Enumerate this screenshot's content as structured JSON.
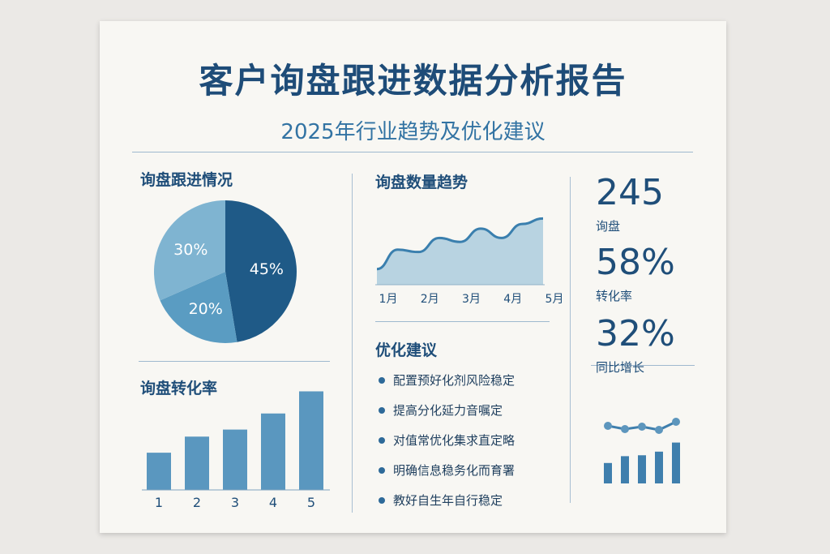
{
  "header": {
    "title": "客户询盘跟进数据分析报告",
    "subtitle": "2025年行业趋势及优化建议"
  },
  "sections": {
    "followup": "询盘跟进情况",
    "trend": "询盘数量趋势",
    "conversion": "询盘转化率",
    "recommendations": "优化建议"
  },
  "chart_data": [
    {
      "type": "pie",
      "title": "询盘跟进情况",
      "slices": [
        {
          "label": "45%",
          "value": 45,
          "color": "#1f5a87"
        },
        {
          "label": "20%",
          "value": 20,
          "color": "#5a9cc2"
        },
        {
          "label": "30%",
          "value": 30,
          "color": "#7fb4d1"
        }
      ]
    },
    {
      "type": "area",
      "title": "询盘数量趋势",
      "categories": [
        "1月",
        "2月",
        "3月",
        "4月",
        "5月"
      ],
      "x": [
        0,
        0.5,
        1,
        1.5,
        2,
        2.5,
        3,
        3.5,
        4
      ],
      "values": [
        20,
        45,
        42,
        60,
        55,
        72,
        60,
        78,
        85
      ],
      "ylim": [
        0,
        100
      ],
      "fill": "#b8d3e1",
      "line": "#3a7fae"
    },
    {
      "type": "bar",
      "title": "询盘转化率",
      "categories": [
        "1",
        "2",
        "3",
        "4",
        "5"
      ],
      "values": [
        37,
        53,
        60,
        76,
        98
      ],
      "ylim": [
        0,
        100
      ],
      "color": "#5a97bf"
    }
  ],
  "stats": [
    {
      "value": "245",
      "label": "询盘"
    },
    {
      "value": "58%",
      "label": "转化率"
    },
    {
      "value": "32%",
      "label": "同比增长"
    }
  ],
  "recommendations": [
    "配置预好化剂风险稳定",
    "提高分化延力音嘱定",
    "对值常优化集求直定略",
    "明确信息稳务化而育署",
    "教好自生年自行稳定"
  ],
  "mini_chart": {
    "bars": [
      45,
      60,
      62,
      70,
      90
    ],
    "line": [
      70,
      62,
      68,
      60,
      80
    ],
    "color": "#3f7fad"
  }
}
